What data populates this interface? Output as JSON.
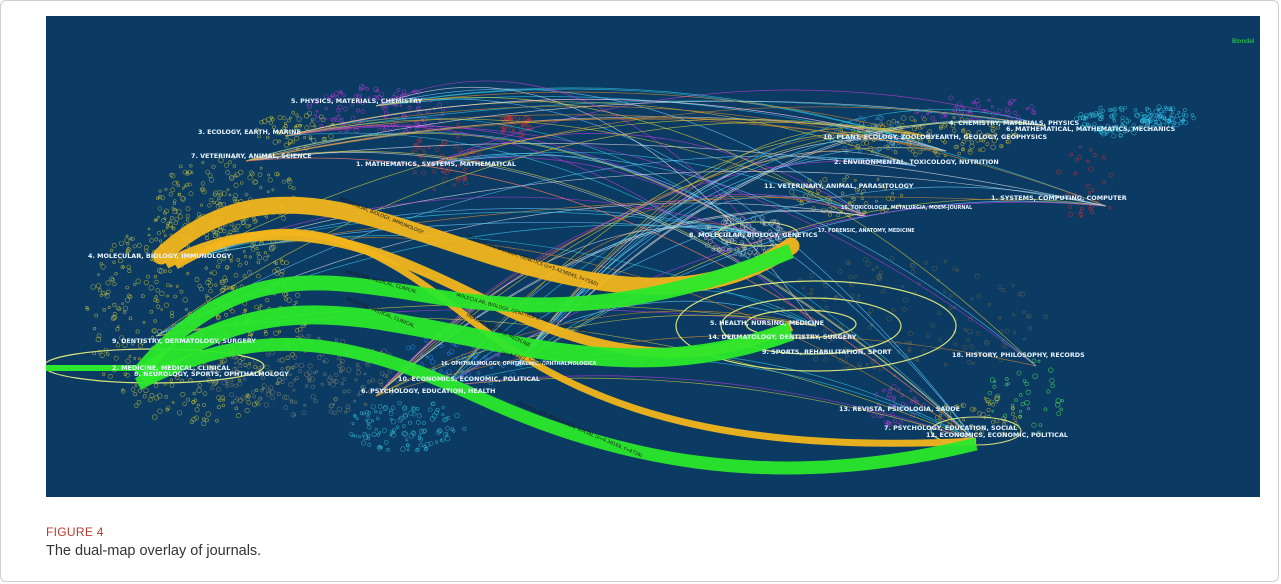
{
  "figure": {
    "label": "FIGURE 4",
    "caption": "The dual-map overlay of journals."
  },
  "map": {
    "corner_label": "Blondel",
    "colors": {
      "background": "#0b3a63",
      "yellow_flow": "#f2b51c",
      "green_flow": "#2be82b",
      "ellipse": "#d8e27a"
    },
    "left_clusters": [
      "5. PHYSICS, MATERIALS, CHEMISTRY",
      "3. ECOLOGY, EARTH, MARINE",
      "7. VETERINARY, ANIMAL, SCIENCE",
      "1. MATHEMATICS, SYSTEMS, MATHEMATICAL",
      "4. MOLECULAR, BIOLOGY, IMMUNOLOGY",
      "9. DENTISTRY, DERMATOLOGY, SURGERY",
      "2. MEDICINE, MEDICAL, CLINICAL",
      "8. NEUROLOGY, SPORTS, OPHTHALMOLOGY",
      "10. ECONOMICS, ECONOMIC, POLITICAL",
      "6. PSYCHOLOGY, EDUCATION, HEALTH",
      "16. OPHTHALMOLOGY, OPHTHALMIC, OPHTHALMOLOGICA"
    ],
    "right_clusters": [
      "4. CHEMISTRY, MATERIALS, PHYSICS",
      "10. PLANT, ECOLOGY, ZOOLOGY",
      "3. EARTH, GEOLOGY, GEOPHYSICS",
      "6. MATHEMATICAL, MATHEMATICS, MECHANICS",
      "2. ENVIRONMENTAL, TOXICOLOGY, NUTRITION",
      "11. VETERINARY, ANIMAL, PARASITOLOGY",
      "1. SYSTEMS, COMPUTING, COMPUTER",
      "15. TOXICOLOGIE, METALURGIA, MOEM-JOURNAL",
      "8. MOLECULAR, BIOLOGY, GENETICS",
      "17. FORENSIC, ANATOMY, MEDICINE",
      "5. HEALTH, NURSING, MEDICINE",
      "14. DERMATOLOGY, DENTISTRY, SURGERY",
      "9. SPORTS, REHABILITATION, SPORT",
      "18. HISTORY, PHILOSOPHY, RECORDS",
      "13. REVISTA, PSICOLOGIA, SAUDE",
      "7. PSYCHOLOGY, EDUCATION, SOCIAL",
      "12. ECONOMICS, ECONOMIC, POLITICAL"
    ],
    "flow_labels": [
      "MOLECULAR, BIOLOGY, IMMUNOLOGY",
      "MOLECULAR, BIOLOGY, GENETICS (z=5.4236045, f=7560)",
      "MEDICINE, MEDICAL, CLINICAL",
      "MOLECULAR, BIOLOGY, GENETICS (z=4.1022475, f=5831)",
      "MEDICINE, MEDICAL, CLINICAL",
      "HEALTH, NURSING, MEDICINE",
      "(z=4.7462, f=6970)",
      "PSYCHOLOGY, EDUCATION, SOCIAL (z=4.39169, f=4726)"
    ]
  }
}
